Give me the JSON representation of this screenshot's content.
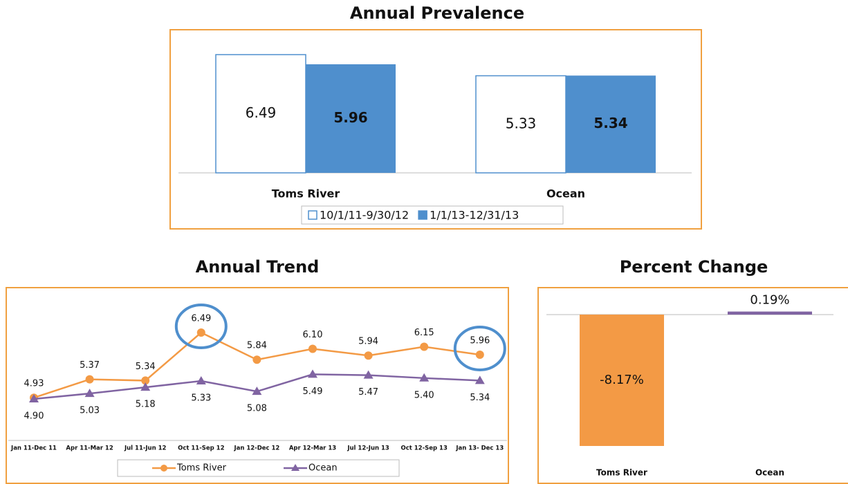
{
  "chart_data": [
    {
      "type": "bar",
      "title": "Annual Prevalence",
      "categories": [
        "Toms River",
        "Ocean"
      ],
      "series": [
        {
          "name": "10/1/11-9/30/12",
          "color": "#ffffff",
          "outline": "#4f8fcd",
          "values": [
            6.49,
            5.33
          ]
        },
        {
          "name": "1/1/13-12/31/13",
          "color": "#4f8fcd",
          "values": [
            5.96,
            5.34
          ]
        }
      ],
      "legend": "bottom"
    },
    {
      "type": "line",
      "title": "Annual Trend",
      "categories": [
        "Jan 11-Dec 11",
        "Apr 11-Mar 12",
        "Jul 11-Jun 12",
        "Oct 11-Sep 12",
        "Jan 12-Dec 12",
        "Apr 12-Mar 13",
        "Jul 12-Jun 13",
        "Oct 12-Sep 13",
        "Jan 13- Dec 13"
      ],
      "series": [
        {
          "name": "Toms River",
          "color": "#f39a45",
          "marker": "circle",
          "values": [
            4.93,
            5.37,
            5.34,
            6.49,
            5.84,
            6.1,
            5.94,
            6.15,
            5.96
          ],
          "value_labels": [
            "4.93",
            "5.37",
            "5.34",
            "6.49",
            "5.84",
            "6.10",
            "5.94",
            "6.15",
            "5.96"
          ]
        },
        {
          "name": "Ocean",
          "color": "#8064a2",
          "marker": "triangle",
          "values": [
            4.9,
            5.03,
            5.18,
            5.33,
            5.08,
            5.49,
            5.47,
            5.4,
            5.34
          ],
          "value_labels": [
            "4.90",
            "5.03",
            "5.18",
            "5.33",
            "5.08",
            "5.49",
            "5.47",
            "5.40",
            "5.34"
          ]
        }
      ],
      "highlight": [
        3,
        8
      ],
      "highlight_color": "#4f8fcd",
      "legend": "bottom"
    },
    {
      "type": "bar",
      "title": "Percent Change",
      "categories": [
        "Toms River",
        "Ocean"
      ],
      "values": [
        -8.17,
        0.19
      ],
      "value_labels": [
        "-8.17%",
        "0.19%"
      ],
      "colors": [
        "#f39a45",
        "#8064a2"
      ]
    }
  ]
}
